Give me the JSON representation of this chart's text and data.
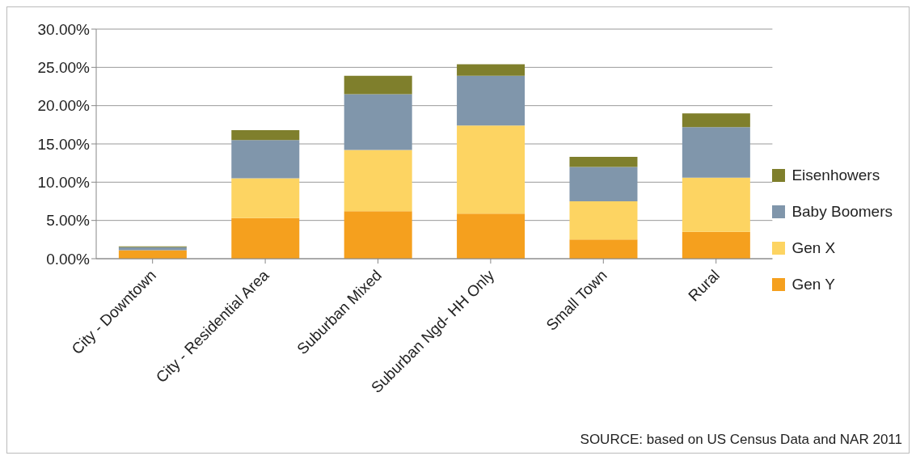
{
  "chart_data": {
    "type": "bar",
    "stacked": true,
    "categories": [
      "City - Downtown",
      "City - Residential  Area",
      "Suburban Mixed",
      "Suburban Ngd- HH Only",
      "Small Town",
      "Rural"
    ],
    "series": [
      {
        "name": "Gen Y",
        "color": "#f5a01e",
        "values": [
          1.1,
          5.3,
          6.2,
          5.9,
          2.5,
          3.5
        ]
      },
      {
        "name": "Gen X",
        "color": "#fdd462",
        "values": [
          0,
          5.2,
          8.0,
          11.5,
          5.0,
          7.1
        ]
      },
      {
        "name": "Baby Boomers",
        "color": "#8096ab",
        "values": [
          0.4,
          5.0,
          7.3,
          6.5,
          4.5,
          6.6
        ]
      },
      {
        "name": "Eisenhowers",
        "color": "#7f7f2c",
        "values": [
          0.1,
          1.3,
          2.4,
          1.5,
          1.3,
          1.8
        ]
      }
    ],
    "ylim": [
      0,
      30
    ],
    "yticks": [
      {
        "value": 0,
        "label": "0.00%"
      },
      {
        "value": 5,
        "label": "5.00%"
      },
      {
        "value": 10,
        "label": "10.00%"
      },
      {
        "value": 15,
        "label": "15.00%"
      },
      {
        "value": 20,
        "label": "20.00%"
      },
      {
        "value": 25,
        "label": "25.00%"
      },
      {
        "value": 30,
        "label": "30.00%"
      }
    ],
    "grid": "y",
    "legend": "right",
    "annotations": [
      "SOURCE:  based on US Census Data and NAR 2011"
    ]
  }
}
